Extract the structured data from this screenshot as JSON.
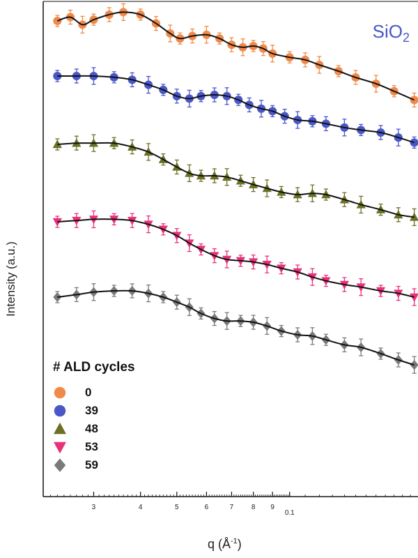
{
  "chart_data": {
    "type": "line",
    "title": "",
    "annotation": {
      "main": "SiO",
      "subscript": "2"
    },
    "xlabel_prefix": "q (Å",
    "xlabel_sup": "-1",
    "xlabel_suffix": ")",
    "ylabel": "Intensity (a.u.)",
    "x_scale": "log",
    "xlim": [
      0.022,
      0.22
    ],
    "y_ticks_shown": false,
    "x_tick_labels": [
      {
        "value": 0.03,
        "label": "3"
      },
      {
        "value": 0.04,
        "label": "4"
      },
      {
        "value": 0.05,
        "label": "5"
      },
      {
        "value": 0.06,
        "label": "6"
      },
      {
        "value": 0.07,
        "label": "7"
      },
      {
        "value": 0.08,
        "label": "8"
      },
      {
        "value": 0.09,
        "label": "9"
      },
      {
        "value": 0.1,
        "label": "0.1"
      }
    ],
    "legend": {
      "title": "# ALD cycles",
      "placement": "lower-left"
    },
    "series": [
      {
        "name": "0",
        "marker": "circle",
        "color": "#f08a4b",
        "x": [
          0.024,
          0.026,
          0.028,
          0.03,
          0.033,
          0.036,
          0.04,
          0.044,
          0.048,
          0.051,
          0.055,
          0.06,
          0.065,
          0.07,
          0.075,
          0.08,
          0.085,
          0.09,
          0.1,
          0.11,
          0.12,
          0.135,
          0.15,
          0.17,
          0.19,
          0.215
        ],
        "y": [
          0.9,
          0.93,
          0.87,
          0.91,
          0.95,
          0.97,
          0.95,
          0.88,
          0.8,
          0.76,
          0.78,
          0.79,
          0.76,
          0.71,
          0.69,
          0.7,
          0.68,
          0.64,
          0.61,
          0.59,
          0.55,
          0.5,
          0.45,
          0.4,
          0.34,
          0.27
        ]
      },
      {
        "name": "39",
        "marker": "circle",
        "color": "#4a57c7",
        "x": [
          0.024,
          0.027,
          0.03,
          0.034,
          0.038,
          0.042,
          0.046,
          0.05,
          0.054,
          0.058,
          0.063,
          0.068,
          0.073,
          0.078,
          0.084,
          0.09,
          0.097,
          0.105,
          0.115,
          0.125,
          0.14,
          0.155,
          0.175,
          0.195,
          0.215
        ],
        "y": [
          0.95,
          0.95,
          0.95,
          0.94,
          0.92,
          0.88,
          0.84,
          0.79,
          0.77,
          0.79,
          0.8,
          0.79,
          0.76,
          0.72,
          0.69,
          0.67,
          0.63,
          0.6,
          0.59,
          0.57,
          0.54,
          0.52,
          0.5,
          0.46,
          0.42
        ]
      },
      {
        "name": "48",
        "marker": "triangle-up",
        "color": "#6b7024",
        "x": [
          0.024,
          0.027,
          0.03,
          0.034,
          0.038,
          0.042,
          0.046,
          0.05,
          0.054,
          0.058,
          0.063,
          0.068,
          0.074,
          0.08,
          0.087,
          0.095,
          0.105,
          0.115,
          0.125,
          0.14,
          0.155,
          0.175,
          0.195,
          0.215
        ],
        "y": [
          0.95,
          0.96,
          0.96,
          0.96,
          0.93,
          0.89,
          0.83,
          0.77,
          0.72,
          0.7,
          0.7,
          0.69,
          0.66,
          0.63,
          0.6,
          0.57,
          0.55,
          0.56,
          0.55,
          0.51,
          0.47,
          0.43,
          0.39,
          0.37
        ]
      },
      {
        "name": "53",
        "marker": "triangle-down",
        "color": "#e8317a",
        "x": [
          0.024,
          0.027,
          0.03,
          0.034,
          0.038,
          0.042,
          0.046,
          0.05,
          0.054,
          0.058,
          0.063,
          0.068,
          0.074,
          0.08,
          0.087,
          0.095,
          0.105,
          0.115,
          0.125,
          0.14,
          0.155,
          0.175,
          0.195,
          0.215
        ],
        "y": [
          0.9,
          0.91,
          0.92,
          0.92,
          0.91,
          0.88,
          0.84,
          0.79,
          0.73,
          0.68,
          0.63,
          0.6,
          0.59,
          0.58,
          0.56,
          0.53,
          0.5,
          0.46,
          0.43,
          0.4,
          0.38,
          0.35,
          0.33,
          0.3
        ]
      },
      {
        "name": "59",
        "marker": "diamond",
        "color": "#7a7a7a",
        "x": [
          0.024,
          0.027,
          0.03,
          0.034,
          0.038,
          0.042,
          0.046,
          0.05,
          0.054,
          0.058,
          0.063,
          0.068,
          0.074,
          0.08,
          0.087,
          0.095,
          0.105,
          0.115,
          0.125,
          0.14,
          0.155,
          0.175,
          0.195,
          0.215
        ],
        "y": [
          0.9,
          0.92,
          0.94,
          0.95,
          0.95,
          0.93,
          0.9,
          0.86,
          0.82,
          0.77,
          0.73,
          0.71,
          0.71,
          0.7,
          0.67,
          0.63,
          0.6,
          0.59,
          0.56,
          0.52,
          0.5,
          0.45,
          0.4,
          0.36
        ]
      }
    ]
  }
}
